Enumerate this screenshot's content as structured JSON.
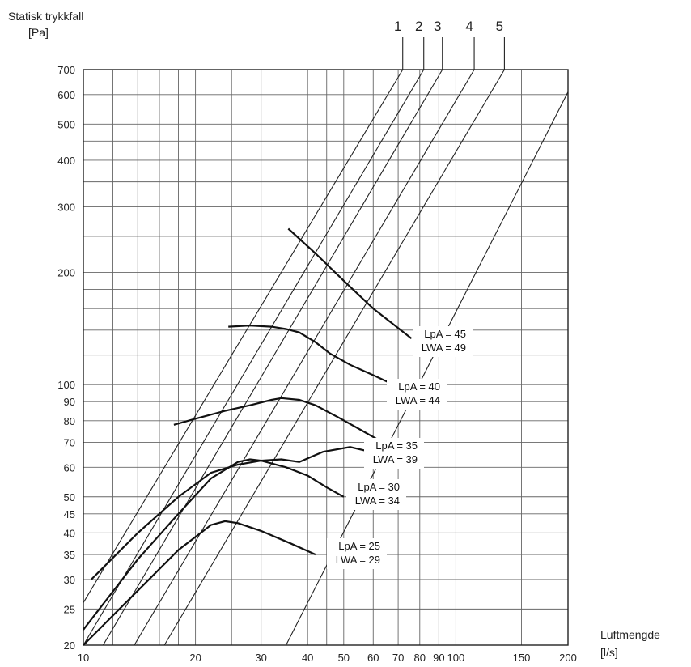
{
  "chart_data": {
    "type": "line",
    "title": "",
    "ylabel": "Statisk trykkfall",
    "yunit": "[Pa]",
    "xlabel": "Luftmengde",
    "xunit": "[l/s]",
    "xscale": "log",
    "yscale": "log",
    "xlim": [
      10,
      200
    ],
    "ylim": [
      20,
      700
    ],
    "grid": true,
    "x_ticks": [
      10,
      20,
      30,
      40,
      50,
      60,
      70,
      80,
      90,
      100,
      150,
      200
    ],
    "y_ticks": [
      20,
      25,
      30,
      35,
      40,
      45,
      50,
      60,
      70,
      80,
      90,
      100,
      200,
      300,
      400,
      500,
      600,
      700
    ],
    "system_curves": [
      {
        "name": "1",
        "points": [
          [
            10,
            26
          ],
          [
            72,
            700
          ]
        ]
      },
      {
        "name": "2",
        "points": [
          [
            10,
            20
          ],
          [
            82,
            700
          ]
        ]
      },
      {
        "name": "3",
        "points": [
          [
            11.3,
            20
          ],
          [
            92,
            700
          ]
        ]
      },
      {
        "name": "4",
        "points": [
          [
            13.7,
            20
          ],
          [
            112,
            700
          ]
        ]
      },
      {
        "name": "5",
        "points": [
          [
            16.5,
            20
          ],
          [
            135,
            700
          ]
        ]
      },
      {
        "name": "",
        "points": [
          [
            35,
            20
          ],
          [
            200,
            610
          ]
        ]
      }
    ],
    "series": [
      {
        "LpA": "LpA = 25",
        "LWA": "LWA = 29",
        "x": [
          10,
          14,
          18,
          22,
          24,
          26,
          30,
          36,
          42
        ],
        "y": [
          20,
          28,
          36,
          42,
          43,
          42.5,
          40.5,
          37.5,
          35
        ]
      },
      {
        "LpA": "LpA = 30",
        "LWA": "LWA = 34",
        "x": [
          10,
          14,
          18,
          22,
          26,
          28,
          30,
          35,
          40,
          45,
          50
        ],
        "y": [
          22,
          34,
          45,
          56,
          62,
          63,
          62.5,
          60,
          57,
          53,
          50
        ]
      },
      {
        "LpA": "LpA = 35",
        "LWA": "LWA = 39",
        "x": [
          10.5,
          14,
          18,
          22,
          26,
          30,
          34,
          38,
          44,
          52,
          59
        ],
        "y": [
          30,
          40,
          50,
          58,
          61,
          62.5,
          63,
          62,
          66,
          68,
          66
        ]
      },
      {
        "LpA": "LpA = 40",
        "LWA": "LWA = 44",
        "x": [
          17.5,
          20,
          24,
          28,
          32,
          34,
          38,
          42,
          48,
          55,
          62,
          71
        ],
        "y": [
          78,
          81,
          85,
          88,
          91,
          92,
          91,
          88,
          82,
          76,
          71,
          66
        ]
      },
      {
        "LpA": "LpA = 45",
        "LWA": "LWA = 49",
        "x": [
          24.5,
          28,
          32,
          35,
          38,
          42,
          46,
          52,
          60,
          68,
          74
        ],
        "y": [
          143,
          144,
          143,
          141,
          138,
          130,
          121,
          113,
          106,
          100,
          97
        ]
      },
      {
        "LpA": "LpA = 45",
        "LWA": "LWA = 49",
        "x": [
          35.5,
          42,
          50,
          60,
          68,
          76
        ],
        "y": [
          262,
          225,
          190,
          160,
          145,
          133
        ]
      }
    ],
    "labels": [
      {
        "lpa": "LpA = 25",
        "lwa": "LWA = 29"
      },
      {
        "lpa": "LpA = 30",
        "lwa": "LWA = 34"
      },
      {
        "lpa": "LpA = 35",
        "lwa": "LWA = 39"
      },
      {
        "lpa": "LpA = 40",
        "lwa": "LWA = 44"
      },
      {
        "lpa": "LpA = 45",
        "lwa": "LWA = 49"
      }
    ]
  }
}
